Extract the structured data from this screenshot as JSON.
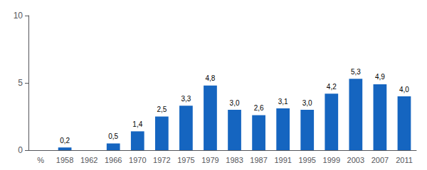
{
  "chart_data": {
    "type": "bar",
    "categories": [
      "%",
      "1958",
      "1962",
      "1966",
      "1970",
      "1972",
      "1975",
      "1979",
      "1983",
      "1987",
      "1991",
      "1995",
      "1999",
      "2003",
      "2007",
      "2011"
    ],
    "values": [
      0,
      0.2,
      0,
      0.5,
      1.4,
      2.5,
      3.3,
      4.8,
      3.0,
      2.6,
      3.1,
      3.0,
      4.2,
      5.3,
      4.9,
      4.0
    ],
    "value_labels": [
      null,
      "0,2",
      null,
      "0,5",
      "1,4",
      "2,5",
      "3,3",
      "4,8",
      "3,0",
      "2,6",
      "3,1",
      "3,0",
      "4,2",
      "5,3",
      "4,9",
      "4,0"
    ],
    "color": "#1565C0",
    "ylim": [
      0,
      10
    ],
    "yticks": [
      0,
      5,
      10
    ],
    "grid": false,
    "data_labels": true
  }
}
